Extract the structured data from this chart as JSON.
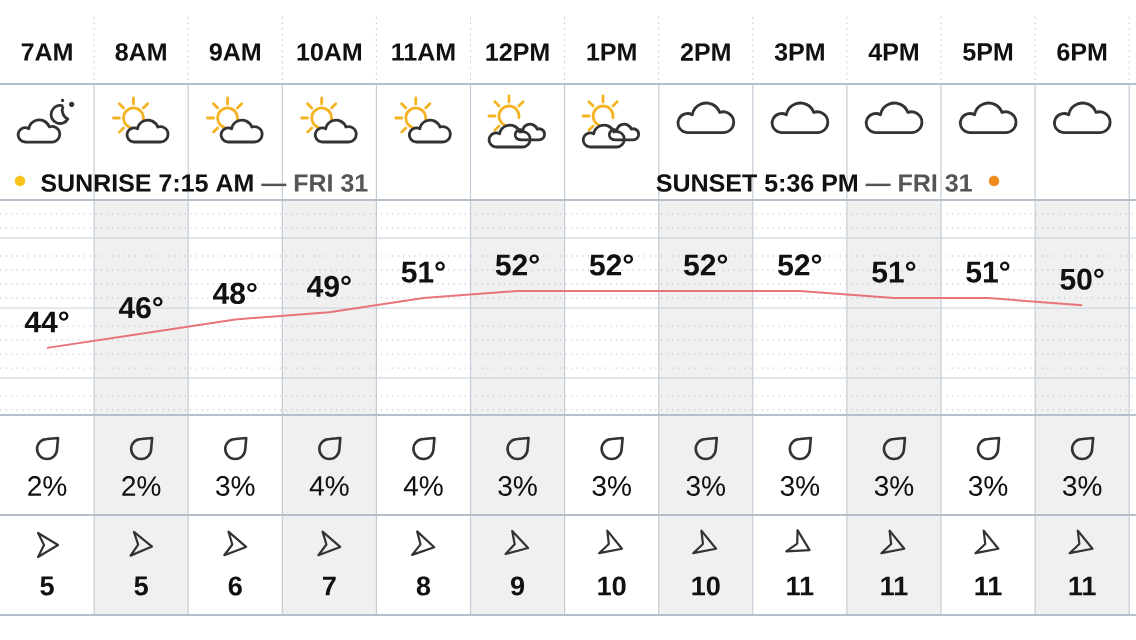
{
  "chart_data": [
    {
      "type": "line",
      "categories": [
        "7AM",
        "8AM",
        "9AM",
        "10AM",
        "11AM",
        "12PM",
        "1PM",
        "2PM",
        "3PM",
        "4PM",
        "5PM",
        "6PM"
      ],
      "values": [
        44,
        46,
        48,
        49,
        51,
        52,
        52,
        52,
        52,
        51,
        51,
        50
      ],
      "value_labels": [
        "44°",
        "46°",
        "48°",
        "49°",
        "51°",
        "52°",
        "52°",
        "52°",
        "52°",
        "51°",
        "51°",
        "50°"
      ],
      "color": "#e8737a",
      "tick_labels": "x",
      "annotations": [
        "SUNRISE 7:15 AM",
        "— FRI 31",
        "SUNSET 5:36 PM",
        "— FRI 31"
      ]
    },
    {
      "type": "other",
      "values": [
        2,
        2,
        3,
        4,
        4,
        3,
        3,
        3,
        3,
        3,
        3,
        3
      ],
      "value_labels": [
        "2%",
        "2%",
        "3%",
        "4%",
        "4%",
        "3%",
        "3%",
        "3%",
        "3%",
        "3%",
        "3%",
        "3%"
      ]
    },
    {
      "type": "other",
      "values": [
        5,
        5,
        6,
        7,
        8,
        9,
        10,
        10,
        11,
        11,
        11,
        11
      ],
      "data_labels": true
    }
  ]
}
